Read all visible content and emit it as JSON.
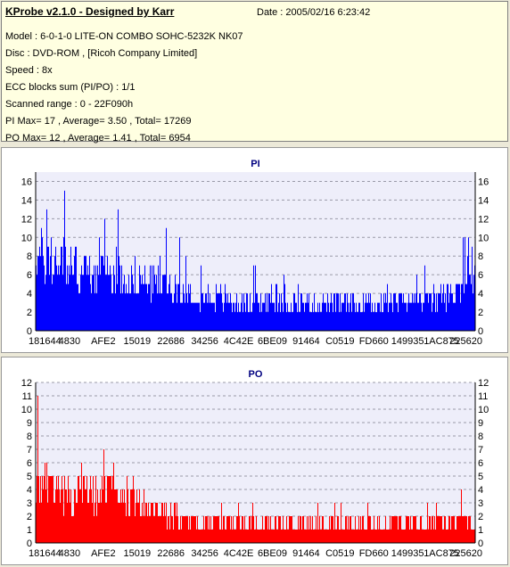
{
  "header": {
    "title": "KProbe v2.1.0 - Designed by Karr",
    "date": "Date : 2005/02/16 6:23:42",
    "lines": [
      "Model : 6-0-1-0 LITE-ON COMBO SOHC-5232K NK07",
      "Disc : DVD-ROM ,  [Ricoh Company Limited]",
      "Speed : 8x",
      "ECC blocks sum (PI/PO) : 1/1",
      "Scanned range : 0 - 22F090h",
      "PI Max= 17 , Average= 3.50 , Total= 17269",
      "PO Max= 12 , Average= 1.41 , Total= 6954"
    ]
  },
  "chart_data": [
    {
      "type": "bar",
      "title": "PI",
      "color": "#0000ff",
      "ylim": [
        0,
        17
      ],
      "yticks": [
        0,
        2,
        4,
        6,
        8,
        10,
        12,
        14,
        16
      ],
      "xticks": [
        "181644",
        "4830",
        "AFE2",
        "15019",
        "22686",
        "34256",
        "4C42E",
        "6BE09",
        "91464",
        "C0519",
        "FD660",
        "149935",
        "1AC875",
        "225620"
      ],
      "profile": [
        {
          "x": 0,
          "avg": 9.0,
          "peak": 17
        },
        {
          "x": 0.05,
          "avg": 8.0,
          "peak": 16
        },
        {
          "x": 0.12,
          "avg": 7.0,
          "peak": 14
        },
        {
          "x": 0.25,
          "avg": 6.0,
          "peak": 12
        },
        {
          "x": 0.32,
          "avg": 5.0,
          "peak": 10
        },
        {
          "x": 0.42,
          "avg": 3.8,
          "peak": 8
        },
        {
          "x": 0.55,
          "avg": 3.2,
          "peak": 6
        },
        {
          "x": 0.75,
          "avg": 3.2,
          "peak": 6
        },
        {
          "x": 0.88,
          "avg": 3.6,
          "peak": 7
        },
        {
          "x": 0.95,
          "avg": 4.3,
          "peak": 9
        },
        {
          "x": 1.0,
          "avg": 7.0,
          "peak": 12
        }
      ]
    },
    {
      "type": "bar",
      "title": "PO",
      "color": "#ff0000",
      "ylim": [
        0,
        12
      ],
      "yticks": [
        0,
        1,
        2,
        3,
        4,
        5,
        6,
        7,
        8,
        9,
        10,
        11,
        12
      ],
      "xticks": [
        "181644",
        "4830",
        "AFE2",
        "15019",
        "22686",
        "34256",
        "4C42E",
        "6BE09",
        "91464",
        "C0519",
        "FD660",
        "149935",
        "1AC875",
        "225620"
      ],
      "profile": [
        {
          "x": 0,
          "avg": 5.0,
          "peak": 12
        },
        {
          "x": 0.05,
          "avg": 4.5,
          "peak": 8
        },
        {
          "x": 0.2,
          "avg": 4.0,
          "peak": 7
        },
        {
          "x": 0.25,
          "avg": 3.0,
          "peak": 6
        },
        {
          "x": 0.32,
          "avg": 2.0,
          "peak": 4
        },
        {
          "x": 0.5,
          "avg": 1.5,
          "peak": 3.5
        },
        {
          "x": 0.75,
          "avg": 1.5,
          "peak": 3.5
        },
        {
          "x": 1.0,
          "avg": 2.0,
          "peak": 5
        }
      ]
    }
  ]
}
